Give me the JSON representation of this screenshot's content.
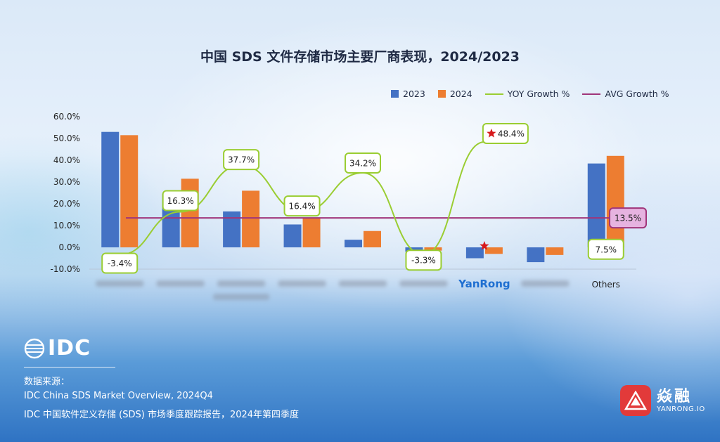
{
  "title": "中国 SDS 文件存储市场主要厂商表现，2024/2023",
  "legend": {
    "s2023": "2023",
    "s2024": "2024",
    "yoy": "YOY Growth %",
    "avg": "AVG Growth %"
  },
  "colors": {
    "s2023": "#4472c4",
    "s2024": "#ed7d31",
    "yoy": "#9acd32",
    "avg": "#a0357a",
    "highlight": "#1f6fd1",
    "star": "#d7191c"
  },
  "chart_data": {
    "type": "bar",
    "title": "中国 SDS 文件存储市场主要厂商表现，2024/2023",
    "categories": [
      "",
      "",
      "",
      "",
      "",
      "",
      "YanRong",
      "",
      "Others"
    ],
    "highlight_category": "YanRong",
    "ytick_labels": [
      "60.0%",
      "50.0%",
      "40.0%",
      "30.0%",
      "20.0%",
      "10.0%",
      "0.0%",
      "-10.0%"
    ],
    "ylim": [
      -10,
      60
    ],
    "series": [
      {
        "name": "2023",
        "values": [
          53.0,
          24.5,
          16.5,
          10.5,
          3.5,
          -2.0,
          -5.0,
          -6.8,
          38.5
        ]
      },
      {
        "name": "2024",
        "values": [
          51.5,
          31.5,
          26.0,
          13.5,
          7.5,
          -1.5,
          -3.0,
          -3.5,
          42.0
        ]
      }
    ],
    "yoy_growth": [
      -3.4,
      16.3,
      37.7,
      16.4,
      34.2,
      -3.3,
      48.4,
      null,
      7.5
    ],
    "yoy_labels": [
      "-3.4%",
      "16.3%",
      "37.7%",
      "16.4%",
      "34.2%",
      "-3.3%",
      "48.4%",
      "",
      "7.5%"
    ],
    "avg_growth": 13.5,
    "avg_label": "13.5%",
    "grid": false,
    "legend_position": "top-right"
  },
  "footer": {
    "logo": "IDC",
    "source_label": "数据来源：",
    "source_1": "IDC China SDS Market Overview, 2024Q4",
    "source_2": "IDC 中国软件定义存储 (SDS) 市场季度跟踪报告，2024年第四季度"
  },
  "brand": {
    "name_cn": "焱融",
    "name_en": "YANRONG.IO"
  }
}
